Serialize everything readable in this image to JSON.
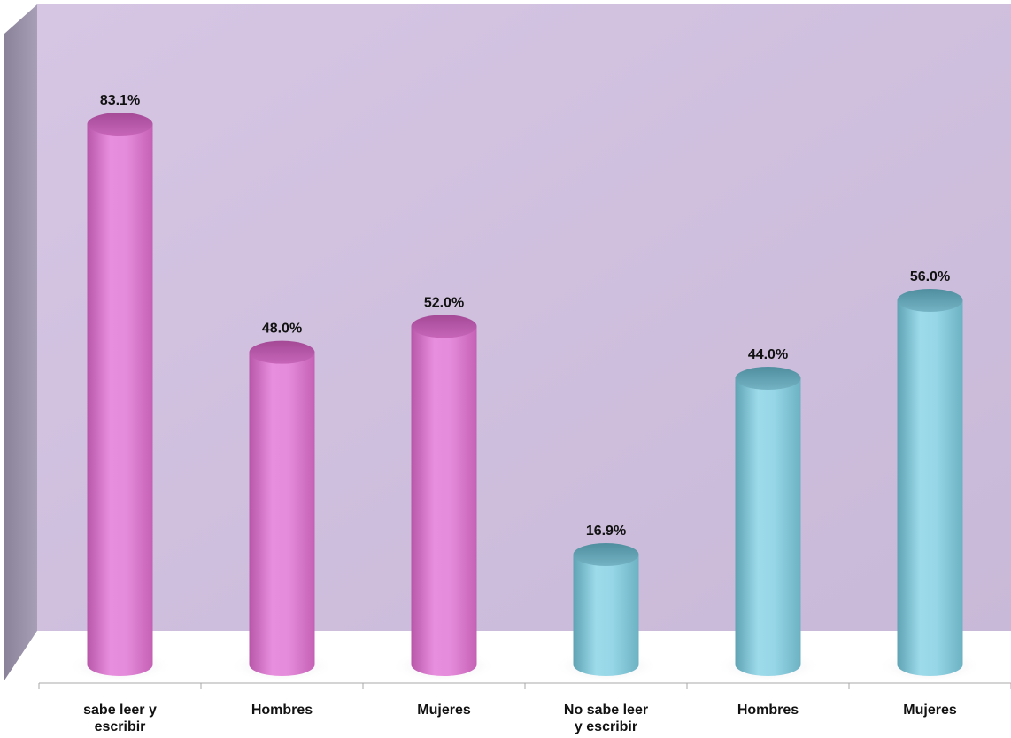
{
  "chart_data": {
    "type": "bar",
    "style": "3d-cylinder",
    "categories": [
      [
        "sabe leer y",
        "escribir"
      ],
      [
        "Hombres"
      ],
      [
        "Mujeres"
      ],
      [
        "No sabe leer",
        "y escribir"
      ],
      [
        "Hombres"
      ],
      [
        "Mujeres"
      ]
    ],
    "values": [
      83.1,
      48.0,
      52.0,
      16.9,
      44.0,
      56.0
    ],
    "value_labels": [
      "83.1%",
      "48.0%",
      "52.0%",
      "16.9%",
      "44.0%",
      "56.0%"
    ],
    "bar_colors": [
      "#e08ad6",
      "#e08ad6",
      "#e08ad6",
      "#8fd3e3",
      "#8fd3e3",
      "#8fd3e3"
    ],
    "ylim": [
      0,
      100
    ],
    "grid": false,
    "legend": "none",
    "background_color": "#d1c2de",
    "floor_color": "#ffffff"
  }
}
